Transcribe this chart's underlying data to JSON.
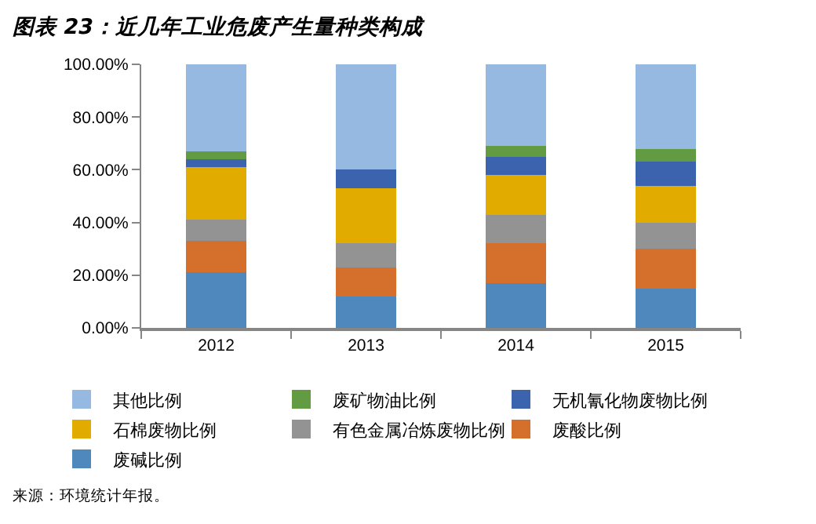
{
  "chart_data": {
    "type": "bar",
    "title": "图表 23：近几年工业危废产生量种类构成",
    "categories": [
      "2012",
      "2013",
      "2014",
      "2015"
    ],
    "stacked": true,
    "series": [
      {
        "name": "废碱比例",
        "color": "#4f88bc",
        "values": [
          21,
          12,
          17,
          15
        ]
      },
      {
        "name": "废酸比例",
        "color": "#d4702b",
        "values": [
          12,
          11,
          15,
          15
        ]
      },
      {
        "name": "有色金属冶炼废物比例",
        "color": "#939393",
        "values": [
          8,
          9,
          11,
          10
        ]
      },
      {
        "name": "石棉废物比例",
        "color": "#e2ab00",
        "values": [
          20,
          21,
          15,
          14
        ]
      },
      {
        "name": "无机氰化物废物比例",
        "color": "#3c64ae",
        "values": [
          3,
          7,
          7,
          9
        ]
      },
      {
        "name": "废矿物油比例",
        "color": "#629b41",
        "values": [
          3,
          null,
          4,
          5
        ]
      },
      {
        "name": "其他比例",
        "color": "#95b9e0",
        "values": [
          33,
          40,
          31,
          32
        ]
      }
    ],
    "ylim": [
      0,
      100
    ],
    "yticks": [
      {
        "value": 0,
        "label": "0.00%"
      },
      {
        "value": 20,
        "label": "20.00%"
      },
      {
        "value": 40,
        "label": "40.00%"
      },
      {
        "value": 60,
        "label": "60.00%"
      },
      {
        "value": 80,
        "label": "80.00%"
      },
      {
        "value": 100,
        "label": "100.00%"
      }
    ],
    "legend": "bottom",
    "annotations": [
      "来源：环境统计年报。"
    ]
  }
}
